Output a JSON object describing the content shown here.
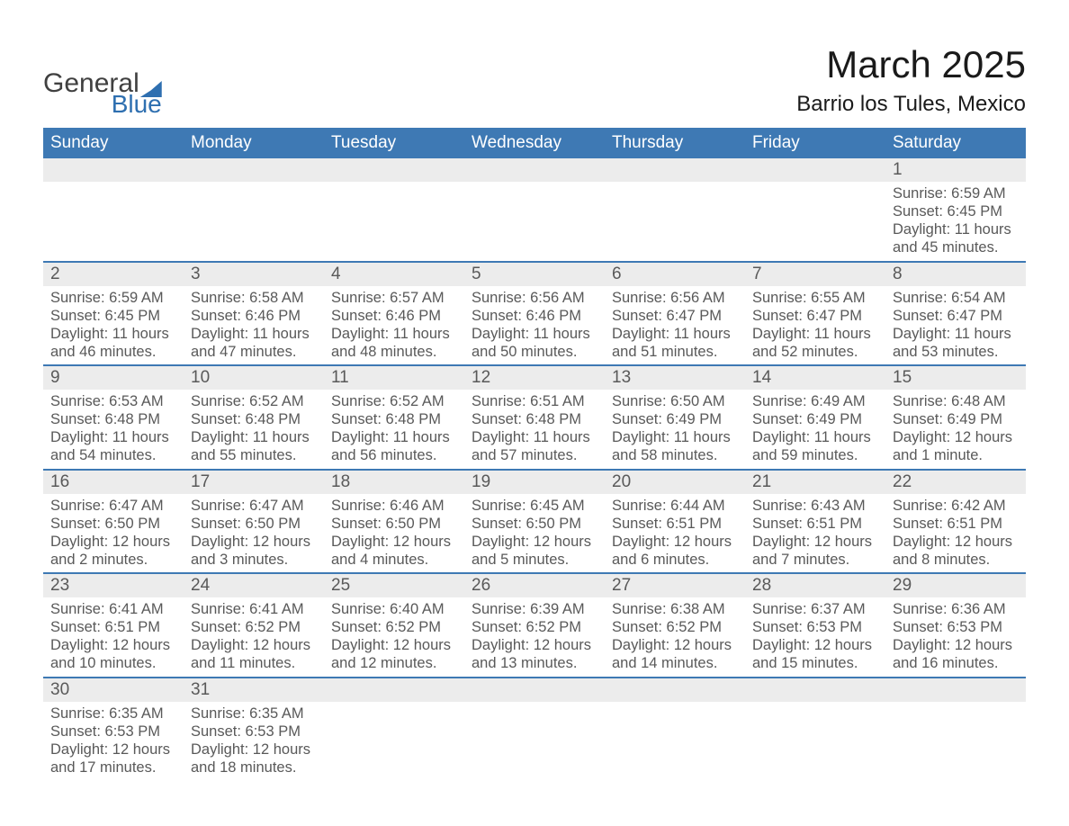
{
  "logo": {
    "text1": "General",
    "text2": "Blue"
  },
  "title": "March 2025",
  "location": "Barrio los Tules, Mexico",
  "colors": {
    "header_bg": "#3e79b4",
    "header_text": "#ffffff",
    "daynum_bg": "#ececec",
    "text": "#595959",
    "title_text": "#1a1a1a",
    "row_border": "#3e79b4",
    "logo_blue": "#2e6fb0"
  },
  "weekdays": [
    "Sunday",
    "Monday",
    "Tuesday",
    "Wednesday",
    "Thursday",
    "Friday",
    "Saturday"
  ],
  "weeks": [
    [
      null,
      null,
      null,
      null,
      null,
      null,
      {
        "n": "1",
        "sr": "Sunrise: 6:59 AM",
        "ss": "Sunset: 6:45 PM",
        "dl": "Daylight: 11 hours and 45 minutes."
      }
    ],
    [
      {
        "n": "2",
        "sr": "Sunrise: 6:59 AM",
        "ss": "Sunset: 6:45 PM",
        "dl": "Daylight: 11 hours and 46 minutes."
      },
      {
        "n": "3",
        "sr": "Sunrise: 6:58 AM",
        "ss": "Sunset: 6:46 PM",
        "dl": "Daylight: 11 hours and 47 minutes."
      },
      {
        "n": "4",
        "sr": "Sunrise: 6:57 AM",
        "ss": "Sunset: 6:46 PM",
        "dl": "Daylight: 11 hours and 48 minutes."
      },
      {
        "n": "5",
        "sr": "Sunrise: 6:56 AM",
        "ss": "Sunset: 6:46 PM",
        "dl": "Daylight: 11 hours and 50 minutes."
      },
      {
        "n": "6",
        "sr": "Sunrise: 6:56 AM",
        "ss": "Sunset: 6:47 PM",
        "dl": "Daylight: 11 hours and 51 minutes."
      },
      {
        "n": "7",
        "sr": "Sunrise: 6:55 AM",
        "ss": "Sunset: 6:47 PM",
        "dl": "Daylight: 11 hours and 52 minutes."
      },
      {
        "n": "8",
        "sr": "Sunrise: 6:54 AM",
        "ss": "Sunset: 6:47 PM",
        "dl": "Daylight: 11 hours and 53 minutes."
      }
    ],
    [
      {
        "n": "9",
        "sr": "Sunrise: 6:53 AM",
        "ss": "Sunset: 6:48 PM",
        "dl": "Daylight: 11 hours and 54 minutes."
      },
      {
        "n": "10",
        "sr": "Sunrise: 6:52 AM",
        "ss": "Sunset: 6:48 PM",
        "dl": "Daylight: 11 hours and 55 minutes."
      },
      {
        "n": "11",
        "sr": "Sunrise: 6:52 AM",
        "ss": "Sunset: 6:48 PM",
        "dl": "Daylight: 11 hours and 56 minutes."
      },
      {
        "n": "12",
        "sr": "Sunrise: 6:51 AM",
        "ss": "Sunset: 6:48 PM",
        "dl": "Daylight: 11 hours and 57 minutes."
      },
      {
        "n": "13",
        "sr": "Sunrise: 6:50 AM",
        "ss": "Sunset: 6:49 PM",
        "dl": "Daylight: 11 hours and 58 minutes."
      },
      {
        "n": "14",
        "sr": "Sunrise: 6:49 AM",
        "ss": "Sunset: 6:49 PM",
        "dl": "Daylight: 11 hours and 59 minutes."
      },
      {
        "n": "15",
        "sr": "Sunrise: 6:48 AM",
        "ss": "Sunset: 6:49 PM",
        "dl": "Daylight: 12 hours and 1 minute."
      }
    ],
    [
      {
        "n": "16",
        "sr": "Sunrise: 6:47 AM",
        "ss": "Sunset: 6:50 PM",
        "dl": "Daylight: 12 hours and 2 minutes."
      },
      {
        "n": "17",
        "sr": "Sunrise: 6:47 AM",
        "ss": "Sunset: 6:50 PM",
        "dl": "Daylight: 12 hours and 3 minutes."
      },
      {
        "n": "18",
        "sr": "Sunrise: 6:46 AM",
        "ss": "Sunset: 6:50 PM",
        "dl": "Daylight: 12 hours and 4 minutes."
      },
      {
        "n": "19",
        "sr": "Sunrise: 6:45 AM",
        "ss": "Sunset: 6:50 PM",
        "dl": "Daylight: 12 hours and 5 minutes."
      },
      {
        "n": "20",
        "sr": "Sunrise: 6:44 AM",
        "ss": "Sunset: 6:51 PM",
        "dl": "Daylight: 12 hours and 6 minutes."
      },
      {
        "n": "21",
        "sr": "Sunrise: 6:43 AM",
        "ss": "Sunset: 6:51 PM",
        "dl": "Daylight: 12 hours and 7 minutes."
      },
      {
        "n": "22",
        "sr": "Sunrise: 6:42 AM",
        "ss": "Sunset: 6:51 PM",
        "dl": "Daylight: 12 hours and 8 minutes."
      }
    ],
    [
      {
        "n": "23",
        "sr": "Sunrise: 6:41 AM",
        "ss": "Sunset: 6:51 PM",
        "dl": "Daylight: 12 hours and 10 minutes."
      },
      {
        "n": "24",
        "sr": "Sunrise: 6:41 AM",
        "ss": "Sunset: 6:52 PM",
        "dl": "Daylight: 12 hours and 11 minutes."
      },
      {
        "n": "25",
        "sr": "Sunrise: 6:40 AM",
        "ss": "Sunset: 6:52 PM",
        "dl": "Daylight: 12 hours and 12 minutes."
      },
      {
        "n": "26",
        "sr": "Sunrise: 6:39 AM",
        "ss": "Sunset: 6:52 PM",
        "dl": "Daylight: 12 hours and 13 minutes."
      },
      {
        "n": "27",
        "sr": "Sunrise: 6:38 AM",
        "ss": "Sunset: 6:52 PM",
        "dl": "Daylight: 12 hours and 14 minutes."
      },
      {
        "n": "28",
        "sr": "Sunrise: 6:37 AM",
        "ss": "Sunset: 6:53 PM",
        "dl": "Daylight: 12 hours and 15 minutes."
      },
      {
        "n": "29",
        "sr": "Sunrise: 6:36 AM",
        "ss": "Sunset: 6:53 PM",
        "dl": "Daylight: 12 hours and 16 minutes."
      }
    ],
    [
      {
        "n": "30",
        "sr": "Sunrise: 6:35 AM",
        "ss": "Sunset: 6:53 PM",
        "dl": "Daylight: 12 hours and 17 minutes."
      },
      {
        "n": "31",
        "sr": "Sunrise: 6:35 AM",
        "ss": "Sunset: 6:53 PM",
        "dl": "Daylight: 12 hours and 18 minutes."
      },
      null,
      null,
      null,
      null,
      null
    ]
  ]
}
